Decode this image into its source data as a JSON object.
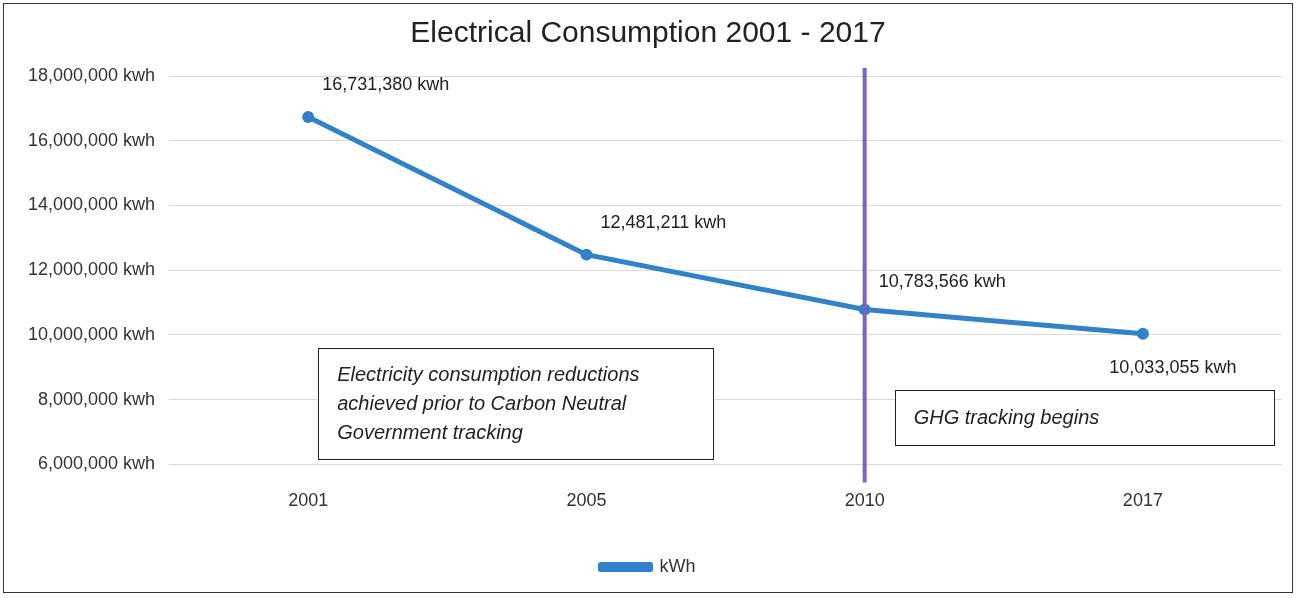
{
  "chart_data": {
    "type": "line",
    "title": "Electrical Consumption 2001 - 2017",
    "categories": [
      "2001",
      "2005",
      "2010",
      "2017"
    ],
    "series": [
      {
        "name": "kWh",
        "color": "#3182c8",
        "values": [
          16731380,
          12481211,
          10783566,
          10033055
        ],
        "value_labels": [
          "16,731,380 kwh",
          "12,481,211 kwh",
          "10,783,566 kwh",
          "10,033,055 kwh"
        ]
      }
    ],
    "ylim": [
      6000000,
      18000000
    ],
    "yticks": [
      {
        "value": 6000000,
        "label": "6,000,000 kwh"
      },
      {
        "value": 8000000,
        "label": "8,000,000 kwh"
      },
      {
        "value": 10000000,
        "label": "10,000,000 kwh"
      },
      {
        "value": 12000000,
        "label": "12,000,000 kwh"
      },
      {
        "value": 14000000,
        "label": "14,000,000 kwh"
      },
      {
        "value": 16000000,
        "label": "16,000,000 kwh"
      },
      {
        "value": 18000000,
        "label": "18,000,000 kwh"
      }
    ],
    "ref_lines": [
      {
        "axis": "x",
        "value": "2010",
        "color": "#7b62c4"
      }
    ],
    "annotations": [
      "Electricity consumption reductions achieved prior to Carbon Neutral Government tracking",
      "GHG tracking begins"
    ],
    "grid": "y",
    "legend": "bottom",
    "marker": "circle",
    "line_style": "solid"
  }
}
